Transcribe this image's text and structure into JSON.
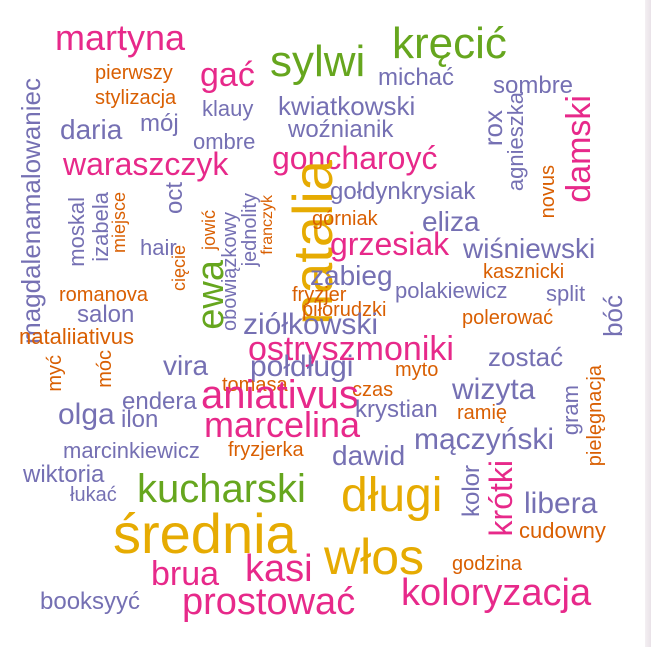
{
  "colors": {
    "magenta": "#e7298a",
    "purple": "#7570b3",
    "green": "#66a61e",
    "gold": "#e6ab02",
    "orange": "#d95f02"
  },
  "words": [
    {
      "text": "martyna",
      "color": "magenta"
    },
    {
      "text": "sylwi",
      "color": "green"
    },
    {
      "text": "kręcić",
      "color": "green"
    },
    {
      "text": "gać",
      "color": "magenta"
    },
    {
      "text": "pierwszy",
      "color": "orange"
    },
    {
      "text": "michać",
      "color": "purple"
    },
    {
      "text": "sombre",
      "color": "purple"
    },
    {
      "text": "stylizacja",
      "color": "orange"
    },
    {
      "text": "klauy",
      "color": "purple"
    },
    {
      "text": "kwiatkowski",
      "color": "purple"
    },
    {
      "text": "magdalenamalowaniec",
      "color": "purple"
    },
    {
      "text": "daria",
      "color": "purple"
    },
    {
      "text": "mój",
      "color": "purple"
    },
    {
      "text": "ombre",
      "color": "purple"
    },
    {
      "text": "woźnianik",
      "color": "purple"
    },
    {
      "text": "rox",
      "color": "purple"
    },
    {
      "text": "agnieszka",
      "color": "purple"
    },
    {
      "text": "damski",
      "color": "magenta"
    },
    {
      "text": "waraszczyk",
      "color": "magenta"
    },
    {
      "text": "goncharoyć",
      "color": "magenta"
    },
    {
      "text": "natalia",
      "color": "gold"
    },
    {
      "text": "novus",
      "color": "orange"
    },
    {
      "text": "gołdynkrysiak",
      "color": "purple"
    },
    {
      "text": "moskal",
      "color": "purple"
    },
    {
      "text": "izabela",
      "color": "purple"
    },
    {
      "text": "miejsce",
      "color": "orange"
    },
    {
      "text": "oct",
      "color": "purple"
    },
    {
      "text": "jowić",
      "color": "orange"
    },
    {
      "text": "obowiązkowy",
      "color": "purple"
    },
    {
      "text": "jednolity",
      "color": "purple"
    },
    {
      "text": "franczyk",
      "color": "orange"
    },
    {
      "text": "górniak",
      "color": "orange"
    },
    {
      "text": "eliza",
      "color": "purple"
    },
    {
      "text": "hair",
      "color": "purple"
    },
    {
      "text": "cięcie",
      "color": "orange"
    },
    {
      "text": "ewa",
      "color": "green"
    },
    {
      "text": "grzesiak",
      "color": "magenta"
    },
    {
      "text": "wiśniewski",
      "color": "purple"
    },
    {
      "text": "kasznicki",
      "color": "orange"
    },
    {
      "text": "zabieg",
      "color": "purple"
    },
    {
      "text": "romanova",
      "color": "orange"
    },
    {
      "text": "fryzjer",
      "color": "orange"
    },
    {
      "text": "polakiewicz",
      "color": "purple"
    },
    {
      "text": "split",
      "color": "purple"
    },
    {
      "text": "salon",
      "color": "purple"
    },
    {
      "text": "piłorudzki",
      "color": "orange"
    },
    {
      "text": "bóć",
      "color": "purple"
    },
    {
      "text": "ziółkowski",
      "color": "purple"
    },
    {
      "text": "polerować",
      "color": "orange"
    },
    {
      "text": "nataliiativus",
      "color": "orange"
    },
    {
      "text": "ostryszmoniki",
      "color": "magenta"
    },
    {
      "text": "myć",
      "color": "orange"
    },
    {
      "text": "móc",
      "color": "orange"
    },
    {
      "text": "vira",
      "color": "purple"
    },
    {
      "text": "połdługi",
      "color": "purple"
    },
    {
      "text": "zostać",
      "color": "purple"
    },
    {
      "text": "myto",
      "color": "orange"
    },
    {
      "text": "tomasa",
      "color": "orange"
    },
    {
      "text": "czas",
      "color": "orange"
    },
    {
      "text": "wizyta",
      "color": "purple"
    },
    {
      "text": "pielęgnacja",
      "color": "orange"
    },
    {
      "text": "gram",
      "color": "purple"
    },
    {
      "text": "endera",
      "color": "purple"
    },
    {
      "text": "aniativus",
      "color": "magenta"
    },
    {
      "text": "krystian",
      "color": "purple"
    },
    {
      "text": "olga",
      "color": "purple"
    },
    {
      "text": "ilon",
      "color": "purple"
    },
    {
      "text": "marcelina",
      "color": "magenta"
    },
    {
      "text": "ramię",
      "color": "orange"
    },
    {
      "text": "mączyński",
      "color": "purple"
    },
    {
      "text": "marcinkiewicz",
      "color": "purple"
    },
    {
      "text": "fryzjerka",
      "color": "orange"
    },
    {
      "text": "dawid",
      "color": "purple"
    },
    {
      "text": "wiktoria",
      "color": "purple"
    },
    {
      "text": "kolor",
      "color": "purple"
    },
    {
      "text": "krótki",
      "color": "magenta"
    },
    {
      "text": "łukać",
      "color": "purple"
    },
    {
      "text": "kucharski",
      "color": "green"
    },
    {
      "text": "długi",
      "color": "gold"
    },
    {
      "text": "libera",
      "color": "purple"
    },
    {
      "text": "średnia",
      "color": "gold"
    },
    {
      "text": "cudowny",
      "color": "orange"
    },
    {
      "text": "włos",
      "color": "gold"
    },
    {
      "text": "brua",
      "color": "magenta"
    },
    {
      "text": "kasi",
      "color": "magenta"
    },
    {
      "text": "godzina",
      "color": "orange"
    },
    {
      "text": "koloryzacja",
      "color": "magenta"
    },
    {
      "text": "booksyyć",
      "color": "purple"
    },
    {
      "text": "prostować",
      "color": "magenta"
    }
  ]
}
